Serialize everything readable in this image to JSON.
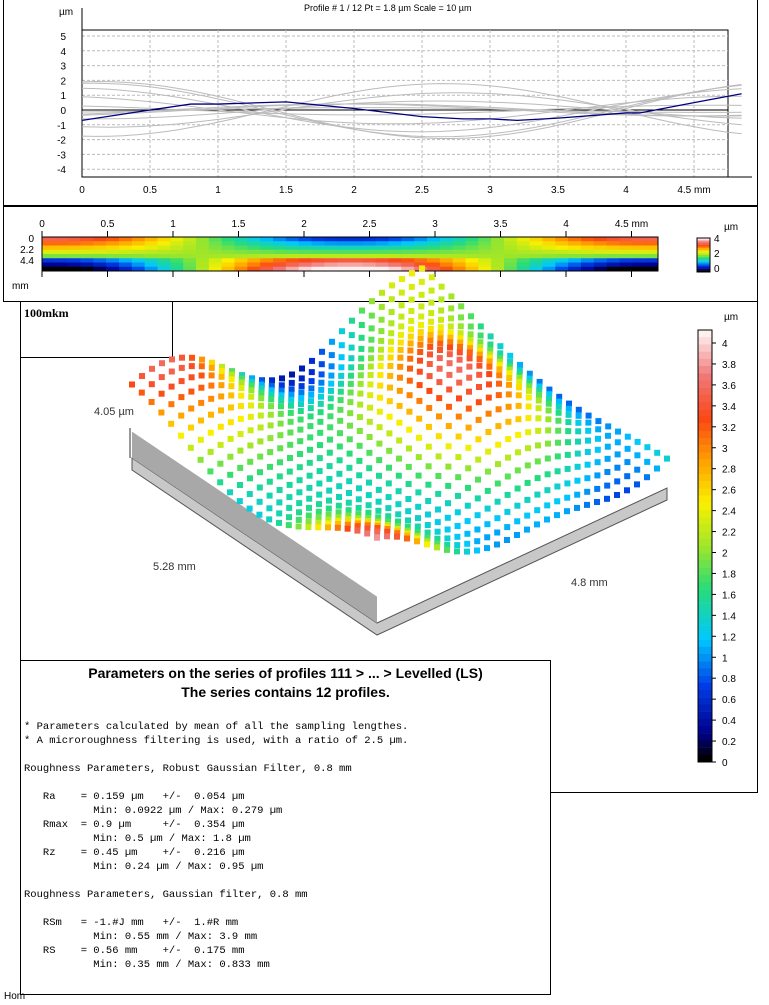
{
  "profile_chart": {
    "title": "Profile # 1 / 12 Pt = 1.8 µm  Scale = 10 µm",
    "y_unit": "µm",
    "x_unit": "mm",
    "y_ticks": [
      "5",
      "4",
      "3",
      "2",
      "1",
      "0",
      "-1",
      "-2",
      "-3",
      "-4"
    ],
    "x_ticks": [
      "0",
      "0.5",
      "1",
      "1.5",
      "2",
      "2.5",
      "3",
      "3.5",
      "4",
      "4.5 mm"
    ],
    "ylim": [
      -4.5,
      5.5
    ],
    "xlim": [
      0,
      4.85
    ],
    "highlight_color": "#000080",
    "highlight_profile": {
      "x": [
        0,
        0.5,
        0.8,
        1,
        1.5,
        2,
        2.5,
        2.8,
        3,
        3.2,
        3.5,
        4,
        4.1,
        4.5,
        4.85
      ],
      "y": [
        -0.7,
        0,
        0.4,
        0.4,
        0.55,
        0.1,
        -0.45,
        -0.6,
        -0.6,
        -0.7,
        -0.55,
        -0.2,
        -0.2,
        0.5,
        1.1
      ]
    }
  },
  "heatmap": {
    "x_ticks": [
      "0",
      "0.5",
      "1",
      "1.5",
      "2",
      "2.5",
      "3",
      "3.5",
      "4",
      "4.5 mm"
    ],
    "y_ticks": [
      "0",
      "2.2",
      "4.4"
    ],
    "y_unit": "mm",
    "colorbar_unit": "µm",
    "colorbar_ticks": [
      "4",
      "2",
      "0"
    ]
  },
  "view3d": {
    "label_box": "100mkm",
    "height_label": "4.05 µm",
    "axis_left": "5.28 mm",
    "axis_right": "4.8 mm",
    "colorbar_unit": "µm",
    "colorbar_ticks": [
      "4",
      "3.8",
      "3.6",
      "3.4",
      "3.2",
      "3",
      "2.8",
      "2.6",
      "2.4",
      "2.2",
      "2",
      "1.8",
      "1.6",
      "1.4",
      "1.2",
      "1",
      "0.8",
      "0.6",
      "0.4",
      "0.2",
      "0"
    ]
  },
  "params": {
    "title1": "Parameters on the series of profiles 111 > ... > Levelled (LS)",
    "title2": "The series contains 12 profiles.",
    "lines": [
      "* Parameters calculated by mean of all the sampling lengthes.",
      "* A microroughness filtering is used, with a ratio of 2.5 µm.",
      "",
      "Roughness Parameters, Robust Gaussian Filter, 0.8 mm",
      "",
      "   Ra    = 0.159 µm   +/-  0.054 µm",
      "           Min: 0.0922 µm / Max: 0.279 µm",
      "   Rmax  = 0.9 µm     +/-  0.354 µm",
      "           Min: 0.5 µm / Max: 1.8 µm",
      "   Rz    = 0.45 µm    +/-  0.216 µm",
      "           Min: 0.24 µm / Max: 0.95 µm",
      "",
      "Roughness Parameters, Gaussian filter, 0.8 mm",
      "",
      "   RSm   = -1.#J mm   +/-  1.#R mm",
      "           Min: 0.55 mm / Max: 3.9 mm",
      "   RS    = 0.56 mm    +/-  0.175 mm",
      "           Min: 0.35 mm / Max: 0.833 mm"
    ]
  },
  "footer": "Hom"
}
